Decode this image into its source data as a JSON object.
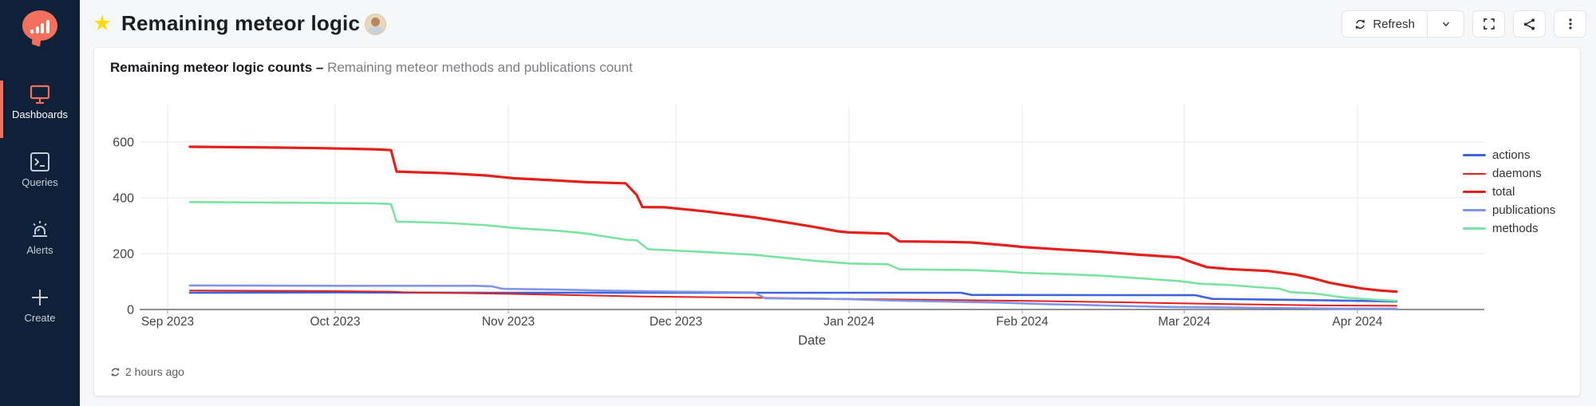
{
  "brand": {
    "accent": "#f4705e",
    "sidebar_bg": "#0e2139",
    "star_color": "#fadb14"
  },
  "sidebar": {
    "items": [
      {
        "label": "Dashboards",
        "icon": "monitor-icon",
        "active": true
      },
      {
        "label": "Queries",
        "icon": "terminal-icon",
        "active": false
      },
      {
        "label": "Alerts",
        "icon": "alarm-icon",
        "active": false
      },
      {
        "label": "Create",
        "icon": "plus-icon",
        "active": false
      }
    ]
  },
  "header": {
    "title": "Remaining meteor logic",
    "refresh_label": "Refresh"
  },
  "widget": {
    "title": "Remaining meteor logic counts –",
    "subtitle": "Remaining meteor methods and publications count",
    "last_refresh": "2 hours ago"
  },
  "chart_data": {
    "type": "line",
    "xlabel": "Date",
    "x_unit": "days since 2023-09-01",
    "x_tick_days": [
      0,
      30,
      61,
      91,
      122,
      153,
      182,
      213
    ],
    "x_tick_labels": [
      "Sep 2023",
      "Oct 2023",
      "Nov 2023",
      "Dec 2023",
      "Jan 2024",
      "Feb 2024",
      "Mar 2024",
      "Apr 2024"
    ],
    "y_ticks": [
      0,
      200,
      400,
      600
    ],
    "ylim": [
      0,
      737
    ],
    "grid": true,
    "legend_position": "right",
    "series": [
      {
        "name": "actions",
        "color": "#3e63dd",
        "width": 2.6,
        "points": [
          [
            4,
            60
          ],
          [
            30,
            61
          ],
          [
            58,
            60
          ],
          [
            100,
            60
          ],
          [
            142,
            60
          ],
          [
            144,
            52
          ],
          [
            184,
            51
          ],
          [
            187,
            38
          ],
          [
            200,
            35
          ],
          [
            210,
            32
          ],
          [
            216,
            30
          ],
          [
            220,
            29
          ]
        ]
      },
      {
        "name": "daemons",
        "color": "#e0211c",
        "width": 2,
        "points": [
          [
            4,
            68
          ],
          [
            28,
            66
          ],
          [
            40,
            64
          ],
          [
            42,
            62
          ],
          [
            61,
            56
          ],
          [
            84,
            47
          ],
          [
            105,
            42
          ],
          [
            122,
            38
          ],
          [
            140,
            34
          ],
          [
            153,
            31
          ],
          [
            170,
            26
          ],
          [
            181,
            22
          ],
          [
            195,
            18
          ],
          [
            205,
            15
          ],
          [
            213,
            14
          ],
          [
            220,
            13
          ]
        ]
      },
      {
        "name": "total",
        "color": "#e0211c",
        "width": 3.2,
        "points": [
          [
            4,
            583
          ],
          [
            20,
            580
          ],
          [
            27,
            578
          ],
          [
            37,
            574
          ],
          [
            40,
            571
          ],
          [
            41,
            494
          ],
          [
            50,
            488
          ],
          [
            57,
            480
          ],
          [
            62,
            470
          ],
          [
            68,
            464
          ],
          [
            75,
            456
          ],
          [
            82,
            452
          ],
          [
            84,
            410
          ],
          [
            85,
            367
          ],
          [
            89,
            366
          ],
          [
            96,
            352
          ],
          [
            105,
            330
          ],
          [
            112,
            308
          ],
          [
            116,
            295
          ],
          [
            120,
            280
          ],
          [
            122,
            276
          ],
          [
            129,
            272
          ],
          [
            131,
            244
          ],
          [
            140,
            242
          ],
          [
            144,
            240
          ],
          [
            150,
            230
          ],
          [
            153,
            224
          ],
          [
            160,
            215
          ],
          [
            167,
            207
          ],
          [
            174,
            196
          ],
          [
            181,
            187
          ],
          [
            183,
            172
          ],
          [
            186,
            152
          ],
          [
            190,
            145
          ],
          [
            197,
            138
          ],
          [
            202,
            125
          ],
          [
            205,
            112
          ],
          [
            208,
            96
          ],
          [
            211,
            85
          ],
          [
            214,
            75
          ],
          [
            217,
            68
          ],
          [
            220,
            64
          ]
        ]
      },
      {
        "name": "publications",
        "color": "#8095e8",
        "width": 2.6,
        "points": [
          [
            4,
            86
          ],
          [
            30,
            85
          ],
          [
            55,
            85
          ],
          [
            58,
            83
          ],
          [
            60,
            74
          ],
          [
            70,
            71
          ],
          [
            80,
            67
          ],
          [
            90,
            64
          ],
          [
            100,
            62
          ],
          [
            105,
            61
          ],
          [
            107,
            40
          ],
          [
            118,
            38
          ],
          [
            122,
            37
          ],
          [
            130,
            32
          ],
          [
            140,
            28
          ],
          [
            150,
            24
          ],
          [
            158,
            19
          ],
          [
            163,
            17
          ],
          [
            172,
            12
          ],
          [
            180,
            9
          ],
          [
            190,
            7
          ],
          [
            200,
            5
          ],
          [
            210,
            3
          ],
          [
            220,
            3
          ]
        ]
      },
      {
        "name": "methods",
        "color": "#7be3a2",
        "width": 2.6,
        "points": [
          [
            4,
            385
          ],
          [
            20,
            383
          ],
          [
            27,
            382
          ],
          [
            37,
            380
          ],
          [
            40,
            378
          ],
          [
            41,
            315
          ],
          [
            50,
            310
          ],
          [
            57,
            302
          ],
          [
            62,
            292
          ],
          [
            70,
            282
          ],
          [
            75,
            272
          ],
          [
            82,
            250
          ],
          [
            84,
            248
          ],
          [
            86,
            216
          ],
          [
            96,
            206
          ],
          [
            105,
            196
          ],
          [
            112,
            182
          ],
          [
            116,
            174
          ],
          [
            122,
            165
          ],
          [
            129,
            162
          ],
          [
            131,
            144
          ],
          [
            144,
            141
          ],
          [
            150,
            136
          ],
          [
            153,
            131
          ],
          [
            160,
            127
          ],
          [
            167,
            121
          ],
          [
            174,
            112
          ],
          [
            181,
            102
          ],
          [
            185,
            92
          ],
          [
            190,
            88
          ],
          [
            195,
            80
          ],
          [
            199,
            75
          ],
          [
            201,
            62
          ],
          [
            205,
            58
          ],
          [
            208,
            50
          ],
          [
            211,
            42
          ],
          [
            214,
            38
          ],
          [
            218,
            33
          ],
          [
            220,
            31
          ]
        ]
      }
    ]
  }
}
